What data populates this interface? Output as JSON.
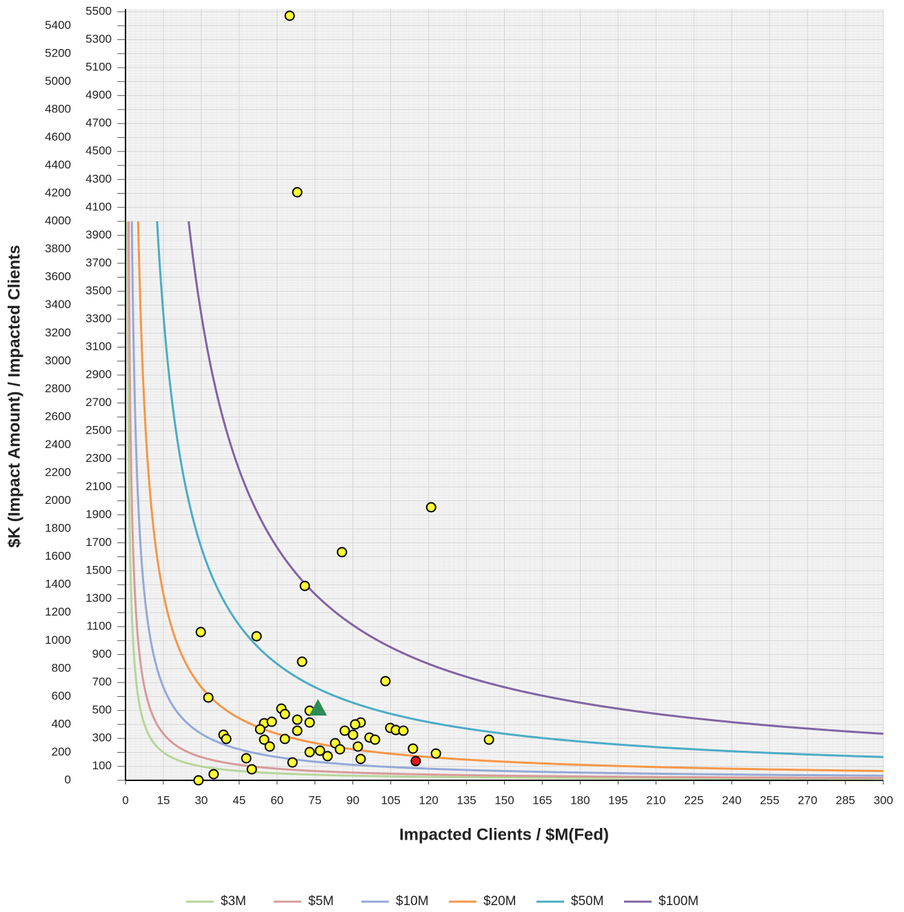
{
  "chart_data": {
    "type": "scatter",
    "x_label": "Impacted Clients / $M(Fed)",
    "y_label": "$K (Impact Amount) / Impacted Clients",
    "xlim": [
      0,
      300
    ],
    "ylim": [
      0,
      5500
    ],
    "xticks": [
      0,
      15,
      30,
      45,
      60,
      75,
      90,
      105,
      120,
      135,
      150,
      165,
      180,
      195,
      210,
      225,
      240,
      255,
      270,
      285,
      300
    ],
    "yticks": [
      0,
      100,
      200,
      300,
      400,
      500,
      600,
      700,
      800,
      900,
      1000,
      1100,
      1200,
      1300,
      1400,
      1500,
      1600,
      1700,
      1800,
      1900,
      2000,
      2100,
      2200,
      2300,
      2400,
      2500,
      2600,
      2700,
      2800,
      2900,
      3000,
      3100,
      3200,
      3300,
      3400,
      3500,
      3600,
      3700,
      3800,
      3900,
      4000,
      4100,
      4200,
      4300,
      4400,
      4500,
      4600,
      4700,
      4800,
      4900,
      5000,
      5100,
      5200,
      5300,
      5400,
      5500
    ],
    "grid": true,
    "curve_max": 4000,
    "curves": [
      {
        "name": "$3M",
        "color": "#b7d59a",
        "product": 3000
      },
      {
        "name": "$5M",
        "color": "#d99a9a",
        "product": 5000
      },
      {
        "name": "$10M",
        "color": "#94a9d6",
        "product": 10000
      },
      {
        "name": "$20M",
        "color": "#f79646",
        "product": 20000
      },
      {
        "name": "$50M",
        "color": "#4bacc6",
        "product": 50000
      },
      {
        "name": "$100M",
        "color": "#8064a2",
        "product": 100000
      }
    ],
    "series": [
      {
        "color": "#ffff33",
        "marker": "circle",
        "x": [
          65,
          68,
          121,
          85.7,
          71,
          29.8,
          51.9,
          69.9,
          102.9,
          32.8,
          61.7,
          72.9,
          63.1,
          68,
          54.9,
          57.9,
          72.9,
          93.1,
          90.9,
          53.3,
          68,
          86.8,
          104.8,
          107,
          110,
          38.8,
          90.1,
          96.6,
          39.9,
          54.9,
          63.1,
          98.8,
          143.9,
          83,
          57.1,
          92,
          84.9,
          113.8,
          72.9,
          77,
          122.9,
          80,
          47.8,
          93.1,
          66.1,
          50,
          34.9,
          28.9
        ],
        "values": [
          5471,
          4208,
          1954,
          1633,
          1391,
          1061,
          1031,
          849,
          710,
          592,
          513,
          498,
          474,
          434,
          409,
          419,
          414,
          414,
          400,
          365,
          355,
          355,
          375,
          360,
          355,
          326,
          326,
          306,
          296,
          291,
          296,
          291,
          291,
          266,
          242,
          242,
          222,
          227,
          202,
          212,
          192,
          173,
          158,
          153,
          128,
          79,
          44,
          0
        ]
      },
      {
        "color": "#e8141c",
        "marker": "circle",
        "x": [
          114.9
        ],
        "values": [
          138
        ]
      },
      {
        "color": "#2e8b57",
        "marker": "triangle",
        "x": [
          76.2
        ],
        "values": [
          513
        ]
      }
    ],
    "legend": "bottom"
  }
}
